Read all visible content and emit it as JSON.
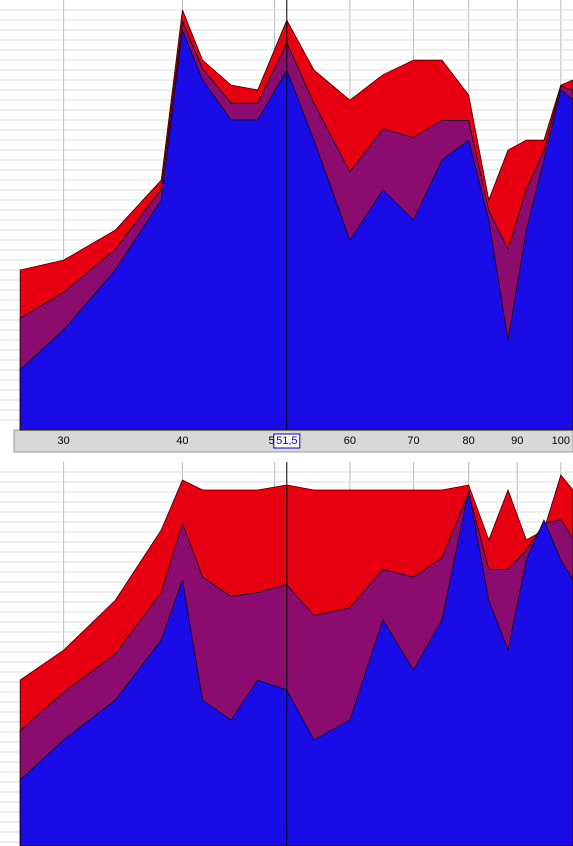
{
  "chart_data": [
    {
      "type": "area",
      "xscale": "log",
      "xlim": [
        26.6,
        103
      ],
      "ylim": [
        0,
        100
      ],
      "grid": true,
      "xticks": [
        30,
        40,
        50,
        60,
        70,
        80,
        90,
        100
      ],
      "cursor": {
        "value": 51.5,
        "label": "51,5"
      },
      "x": [
        27,
        30,
        34,
        38,
        40,
        42,
        45,
        48,
        51.5,
        55,
        60,
        65,
        70,
        75,
        80,
        84,
        88,
        92,
        96,
        100,
        103
      ],
      "series": [
        {
          "color": "#e60012",
          "values": [
            37.2,
            39.5,
            46.5,
            58.1,
            97.7,
            86,
            80.2,
            79.1,
            95.3,
            83.7,
            76.7,
            82.6,
            86,
            86,
            77.9,
            53.5,
            65.1,
            67.4,
            67.4,
            80.2,
            81.4
          ]
        },
        {
          "color": "#8b0c6e",
          "values": [
            26,
            32,
            42,
            56,
            95,
            84,
            76,
            76,
            90,
            76,
            60,
            70,
            68,
            72,
            72,
            51,
            42,
            56,
            65,
            80,
            79
          ]
        },
        {
          "color": "#1a0ce6",
          "values": [
            14,
            23.3,
            37.2,
            53.5,
            93,
            81.4,
            72.1,
            72.1,
            83.7,
            67.4,
            44.2,
            55.8,
            48.8,
            62.8,
            67.4,
            48.8,
            20.9,
            46.5,
            62.8,
            79.1,
            76.7
          ]
        }
      ]
    },
    {
      "type": "area",
      "xscale": "log",
      "xlim": [
        26.6,
        103
      ],
      "ylim": [
        0,
        100
      ],
      "grid": true,
      "x": [
        27,
        30,
        34,
        38,
        40,
        42,
        45,
        48,
        51.5,
        55,
        60,
        65,
        70,
        75,
        80,
        84,
        88,
        92,
        96,
        100,
        103
      ],
      "series": [
        {
          "color": "#e60012",
          "values": [
            43.2,
            51,
            64,
            82.3,
            95.3,
            92.7,
            92.7,
            92.7,
            94,
            92.7,
            92.7,
            92.7,
            92.7,
            92.7,
            94,
            79.7,
            92.7,
            79.7,
            82.3,
            96.6,
            92.7
          ]
        },
        {
          "color": "#8b0c6e",
          "values": [
            30,
            40,
            50,
            66,
            84,
            70,
            65,
            66,
            68,
            60,
            62,
            72,
            70,
            75,
            92,
            72,
            72,
            77,
            84,
            85,
            80
          ]
        },
        {
          "color": "#1a0ce6",
          "values": [
            17.2,
            27.6,
            38,
            53.6,
            69.3,
            38,
            32.8,
            43.2,
            40.6,
            27.6,
            32.8,
            58.9,
            45.8,
            58.9,
            92.7,
            64,
            51,
            74.5,
            84.9,
            74.5,
            69.3
          ]
        }
      ]
    }
  ]
}
